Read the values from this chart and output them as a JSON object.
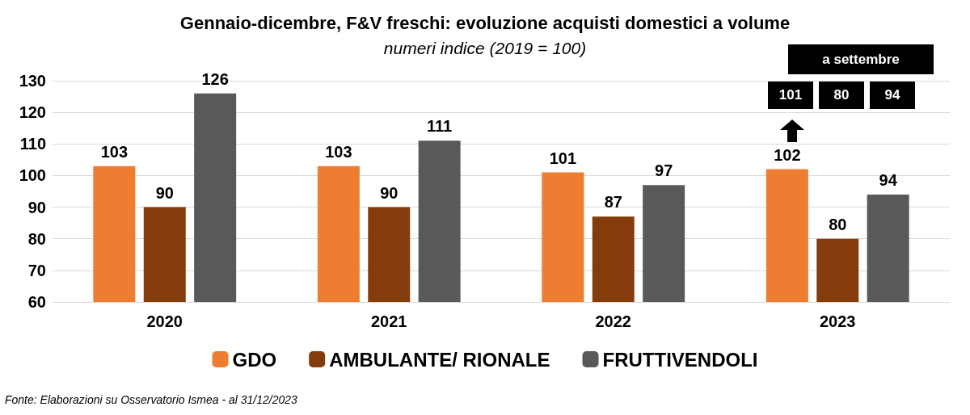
{
  "chart_data": {
    "type": "bar",
    "title": "Gennaio-dicembre, F&V freschi: evoluzione acquisti domestici a volume",
    "subtitle": "numeri indice (2019 = 100)",
    "categories": [
      "2020",
      "2021",
      "2022",
      "2023"
    ],
    "series": [
      {
        "name": "GDO",
        "color": "#ed7d31",
        "values": [
          103,
          103,
          101,
          102
        ]
      },
      {
        "name": "AMBULANTE/ RIONALE",
        "color": "#843c0c",
        "values": [
          90,
          90,
          87,
          80
        ]
      },
      {
        "name": "FRUTTIVENDOLI",
        "color": "#595959",
        "values": [
          126,
          111,
          97,
          94
        ]
      }
    ],
    "ylim": [
      60,
      130
    ],
    "yticks": [
      60,
      70,
      80,
      90,
      100,
      110,
      120,
      130
    ],
    "grid": "y",
    "legend": "bottom",
    "data_labels": true,
    "annotations": [
      "a settembre",
      "101",
      "80",
      "94",
      "Fonte: Elaborazioni su Osservatorio Ismea - al 31/12/2023"
    ]
  }
}
